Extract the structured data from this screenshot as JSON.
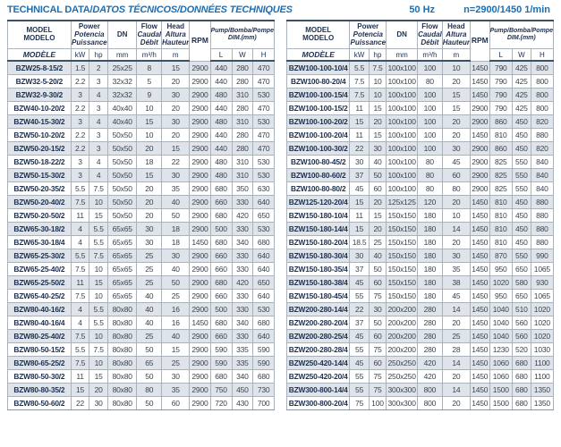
{
  "title": {
    "en": "TECHNICAL DATA/",
    "intl": "DATOS TÉCNICOS/DONNÉES TECHNIQUES"
  },
  "meta": {
    "frequency": "50 Hz",
    "speed": "n=2900/1450 1/min"
  },
  "colors": {
    "accent_blue": "#1a6fb5",
    "header_navy": "#1d2f4f",
    "row_tint": "#dee4ea",
    "border_gray": "#aab3bc",
    "border_dark": "#3c4f63"
  },
  "header": {
    "model_en": "MODEL",
    "model_es": "MODELO",
    "model_fr": "MODÈLE",
    "power_en": "Power",
    "power_es": "Potencia",
    "power_fr": "Puissance",
    "unit_kw": "kW",
    "unit_hp": "hp",
    "dn": "DN",
    "unit_mm": "mm",
    "flow_en": "Flow",
    "flow_es": "Caudal",
    "flow_fr": "Débit",
    "unit_flow": "m³/h",
    "head_en": "Head",
    "head_es": "Altura",
    "head_fr": "Hauteur",
    "unit_m": "m",
    "rpm": "RPM",
    "dim_title": "Pump/Bomba/Pompe",
    "dim_sub": "DIM.(mm)",
    "dim_l": "L",
    "dim_w": "W",
    "dim_h": "H"
  },
  "tables": [
    {
      "name": "left",
      "rows": [
        [
          "BZW25-8-15/2",
          "1.5",
          "2",
          "25x25",
          "8",
          "15",
          "2900",
          "440",
          "280",
          "470"
        ],
        [
          "BZW32-5-20/2",
          "2.2",
          "3",
          "32x32",
          "5",
          "20",
          "2900",
          "440",
          "280",
          "470"
        ],
        [
          "BZW32-9-30/2",
          "3",
          "4",
          "32x32",
          "9",
          "30",
          "2900",
          "480",
          "310",
          "530"
        ],
        [
          "BZW40-10-20/2",
          "2.2",
          "3",
          "40x40",
          "10",
          "20",
          "2900",
          "440",
          "280",
          "470"
        ],
        [
          "BZW40-15-30/2",
          "3",
          "4",
          "40x40",
          "15",
          "30",
          "2900",
          "480",
          "310",
          "530"
        ],
        [
          "BZW50-10-20/2",
          "2.2",
          "3",
          "50x50",
          "10",
          "20",
          "2900",
          "440",
          "280",
          "470"
        ],
        [
          "BZW50-20-15/2",
          "2.2",
          "3",
          "50x50",
          "20",
          "15",
          "2900",
          "440",
          "280",
          "470"
        ],
        [
          "BZW50-18-22/2",
          "3",
          "4",
          "50x50",
          "18",
          "22",
          "2900",
          "480",
          "310",
          "530"
        ],
        [
          "BZW50-15-30/2",
          "3",
          "4",
          "50x50",
          "15",
          "30",
          "2900",
          "480",
          "310",
          "530"
        ],
        [
          "BZW50-20-35/2",
          "5.5",
          "7.5",
          "50x50",
          "20",
          "35",
          "2900",
          "680",
          "350",
          "630"
        ],
        [
          "BZW50-20-40/2",
          "7.5",
          "10",
          "50x50",
          "20",
          "40",
          "2900",
          "660",
          "330",
          "640"
        ],
        [
          "BZW50-20-50/2",
          "11",
          "15",
          "50x50",
          "20",
          "50",
          "2900",
          "680",
          "420",
          "650"
        ],
        [
          "BZW65-30-18/2",
          "4",
          "5.5",
          "65x65",
          "30",
          "18",
          "2900",
          "500",
          "330",
          "530"
        ],
        [
          "BZW65-30-18/4",
          "4",
          "5.5",
          "65x65",
          "30",
          "18",
          "1450",
          "680",
          "340",
          "680"
        ],
        [
          "BZW65-25-30/2",
          "5.5",
          "7.5",
          "65x65",
          "25",
          "30",
          "2900",
          "660",
          "330",
          "640"
        ],
        [
          "BZW65-25-40/2",
          "7.5",
          "10",
          "65x65",
          "25",
          "40",
          "2900",
          "660",
          "330",
          "640"
        ],
        [
          "BZW65-25-50/2",
          "11",
          "15",
          "65x65",
          "25",
          "50",
          "2900",
          "680",
          "420",
          "650"
        ],
        [
          "BZW65-40-25/2",
          "7.5",
          "10",
          "65x65",
          "40",
          "25",
          "2900",
          "660",
          "330",
          "640"
        ],
        [
          "BZW80-40-16/2",
          "4",
          "5.5",
          "80x80",
          "40",
          "16",
          "2900",
          "500",
          "330",
          "530"
        ],
        [
          "BZW80-40-16/4",
          "4",
          "5.5",
          "80x80",
          "40",
          "16",
          "1450",
          "680",
          "340",
          "680"
        ],
        [
          "BZW80-25-40/2",
          "7.5",
          "10",
          "80x80",
          "25",
          "40",
          "2900",
          "660",
          "330",
          "640"
        ],
        [
          "BZW80-50-15/2",
          "5.5",
          "7.5",
          "80x80",
          "50",
          "15",
          "2900",
          "590",
          "335",
          "590"
        ],
        [
          "BZW80-65-25/2",
          "7.5",
          "10",
          "80x80",
          "65",
          "25",
          "2900",
          "590",
          "335",
          "590"
        ],
        [
          "BZW80-50-30/2",
          "11",
          "15",
          "80x80",
          "50",
          "30",
          "2900",
          "680",
          "340",
          "680"
        ],
        [
          "BZW80-80-35/2",
          "15",
          "20",
          "80x80",
          "80",
          "35",
          "2900",
          "750",
          "450",
          "730"
        ],
        [
          "BZW80-50-60/2",
          "22",
          "30",
          "80x80",
          "50",
          "60",
          "2900",
          "720",
          "430",
          "700"
        ]
      ]
    },
    {
      "name": "right",
      "rows": [
        [
          "BZW100-100-10/4",
          "5.5",
          "7.5",
          "100x100",
          "100",
          "10",
          "1450",
          "790",
          "425",
          "800"
        ],
        [
          "BZW100-80-20/4",
          "7.5",
          "10",
          "100x100",
          "80",
          "20",
          "1450",
          "790",
          "425",
          "800"
        ],
        [
          "BZW100-100-15/4",
          "7.5",
          "10",
          "100x100",
          "100",
          "15",
          "1450",
          "790",
          "425",
          "800"
        ],
        [
          "BZW100-100-15/2",
          "11",
          "15",
          "100x100",
          "100",
          "15",
          "2900",
          "790",
          "425",
          "800"
        ],
        [
          "BZW100-100-20/2",
          "15",
          "20",
          "100x100",
          "100",
          "20",
          "2900",
          "860",
          "450",
          "820"
        ],
        [
          "BZW100-100-20/4",
          "11",
          "15",
          "100x100",
          "100",
          "20",
          "1450",
          "810",
          "450",
          "880"
        ],
        [
          "BZW100-100-30/2",
          "22",
          "30",
          "100x100",
          "100",
          "30",
          "2900",
          "860",
          "450",
          "820"
        ],
        [
          "BZW100-80-45/2",
          "30",
          "40",
          "100x100",
          "80",
          "45",
          "2900",
          "825",
          "550",
          "840"
        ],
        [
          "BZW100-80-60/2",
          "37",
          "50",
          "100x100",
          "80",
          "60",
          "2900",
          "825",
          "550",
          "840"
        ],
        [
          "BZW100-80-80/2",
          "45",
          "60",
          "100x100",
          "80",
          "80",
          "2900",
          "825",
          "550",
          "840"
        ],
        [
          "BZW125-120-20/4",
          "15",
          "20",
          "125x125",
          "120",
          "20",
          "1450",
          "810",
          "450",
          "880"
        ],
        [
          "BZW150-180-10/4",
          "11",
          "15",
          "150x150",
          "180",
          "10",
          "1450",
          "810",
          "450",
          "880"
        ],
        [
          "BZW150-180-14/4",
          "15",
          "20",
          "150x150",
          "180",
          "14",
          "1450",
          "810",
          "450",
          "880"
        ],
        [
          "BZW150-180-20/4",
          "18.5",
          "25",
          "150x150",
          "180",
          "20",
          "1450",
          "810",
          "450",
          "880"
        ],
        [
          "BZW150-180-30/4",
          "30",
          "40",
          "150x150",
          "180",
          "30",
          "1450",
          "870",
          "550",
          "990"
        ],
        [
          "BZW150-180-35/4",
          "37",
          "50",
          "150x150",
          "180",
          "35",
          "1450",
          "950",
          "650",
          "1065"
        ],
        [
          "BZW150-180-38/4",
          "45",
          "60",
          "150x150",
          "180",
          "38",
          "1450",
          "1020",
          "580",
          "930"
        ],
        [
          "BZW150-180-45/4",
          "55",
          "75",
          "150x150",
          "180",
          "45",
          "1450",
          "950",
          "650",
          "1065"
        ],
        [
          "BZW200-280-14/4",
          "22",
          "30",
          "200x200",
          "280",
          "14",
          "1450",
          "1040",
          "510",
          "1020"
        ],
        [
          "BZW200-280-20/4",
          "37",
          "50",
          "200x200",
          "280",
          "20",
          "1450",
          "1040",
          "560",
          "1020"
        ],
        [
          "BZW200-280-25/4",
          "45",
          "60",
          "200x200",
          "280",
          "25",
          "1450",
          "1040",
          "560",
          "1020"
        ],
        [
          "BZW200-280-28/4",
          "55",
          "75",
          "200x200",
          "280",
          "28",
          "1450",
          "1230",
          "520",
          "1030"
        ],
        [
          "BZW250-420-14/4",
          "45",
          "60",
          "250x250",
          "420",
          "14",
          "1450",
          "1060",
          "680",
          "1100"
        ],
        [
          "BZW250-420-20/4",
          "55",
          "75",
          "250x250",
          "420",
          "20",
          "1450",
          "1060",
          "680",
          "1100"
        ],
        [
          "BZW300-800-14/4",
          "55",
          "75",
          "300x300",
          "800",
          "14",
          "1450",
          "1500",
          "680",
          "1350"
        ],
        [
          "BZW300-800-20/4",
          "75",
          "100",
          "300x300",
          "800",
          "20",
          "1450",
          "1500",
          "680",
          "1350"
        ]
      ]
    }
  ]
}
